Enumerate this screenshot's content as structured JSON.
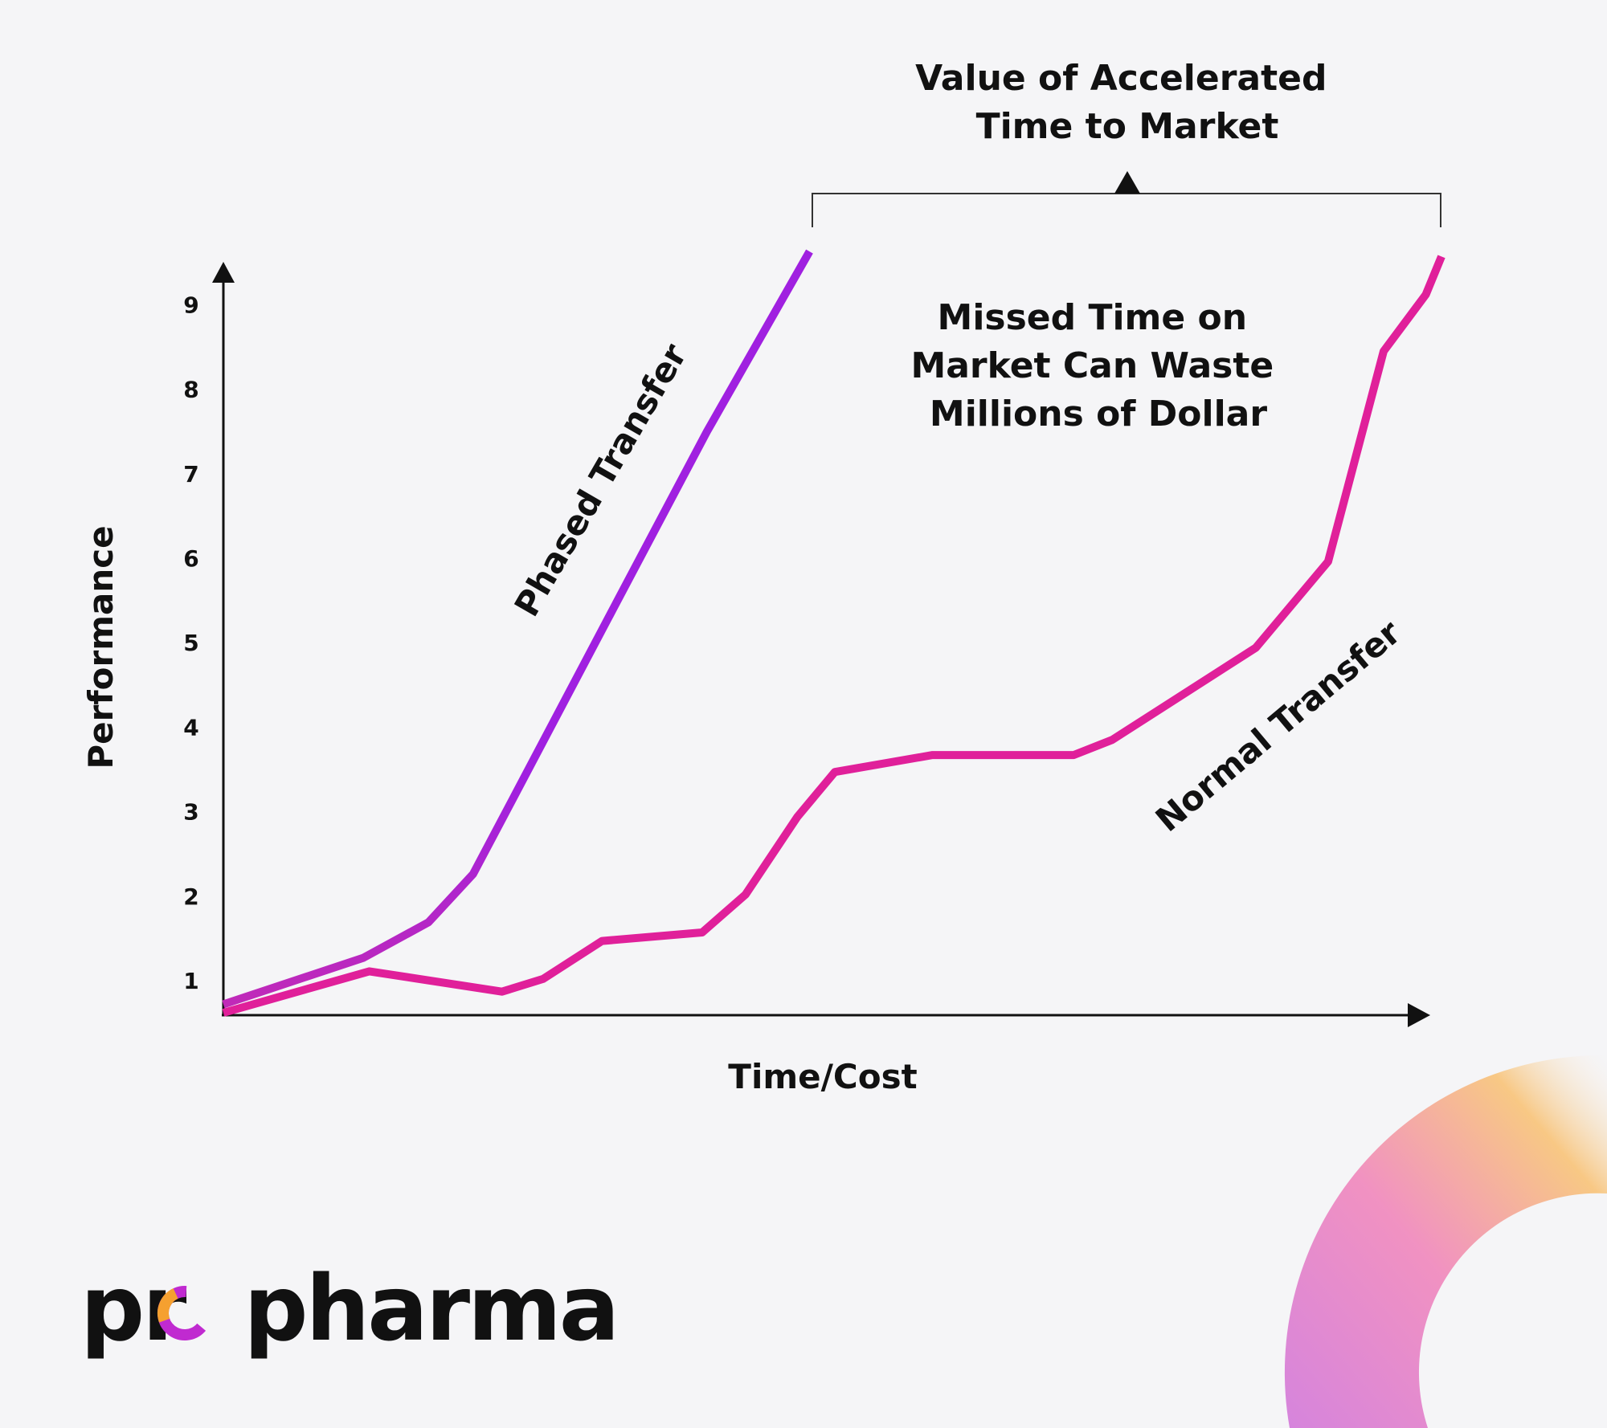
{
  "chart_data": {
    "type": "line",
    "xlabel": "Time/Cost",
    "ylabel": "Performance",
    "yticks": [
      "1",
      "2",
      "3",
      "4",
      "5",
      "6",
      "7",
      "8",
      "9"
    ],
    "ylim": [
      0.45,
      9.8
    ],
    "xlim": [
      0,
      101
    ],
    "grid": false,
    "colors": {
      "phased": "#a020e0",
      "phased_start": "#c02ab8",
      "normal": "#e0209a"
    },
    "series": [
      {
        "name": "Phased Transfer",
        "x": [
          0,
          11.6,
          17,
          20.7,
          24,
          32.5,
          40.1,
          48.6
        ],
        "y": [
          0.72,
          1.27,
          1.69,
          2.26,
          3.15,
          5.45,
          7.5,
          9.63
        ]
      },
      {
        "name": "Normal Transfer",
        "x": [
          0,
          12.1,
          23.1,
          26.5,
          31.4,
          39.7,
          43.3,
          47.6,
          50.7,
          58.8,
          70.5,
          73.7,
          85.6,
          91.6,
          96.2,
          99.7,
          101
        ],
        "y": [
          0.62,
          1.11,
          0.87,
          1.02,
          1.47,
          1.57,
          2.02,
          2.94,
          3.47,
          3.67,
          3.67,
          3.85,
          4.94,
          5.96,
          8.45,
          9.12,
          9.57
        ]
      }
    ],
    "annotations": {
      "bracket_title": [
        "Value of Accelerated",
        "Time to Market"
      ],
      "gap_note": [
        "Missed Time on",
        "Market Can Waste",
        "Millions of Dollar"
      ]
    }
  },
  "brand": {
    "logo_text": "propharma"
  }
}
